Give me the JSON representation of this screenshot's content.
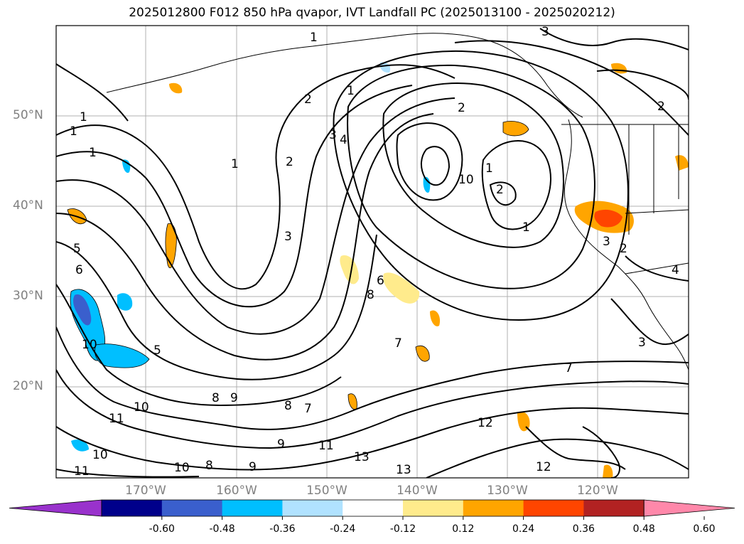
{
  "title": "2025012800 F012 850 hPa qvapor, IVT Landfall PC (2025013100 - 2025020212)",
  "lat_labels": [
    "50°N",
    "40°N",
    "30°N",
    "20°N"
  ],
  "lon_labels": [
    "170°W",
    "160°W",
    "150°W",
    "140°W",
    "130°W",
    "120°W"
  ],
  "contour_labels": [
    "1",
    "1",
    "1",
    "1",
    "1",
    "1",
    "1",
    "1",
    "2",
    "2",
    "2",
    "2",
    "2",
    "2",
    "3",
    "3",
    "3",
    "3",
    "3",
    "4",
    "4",
    "5",
    "5",
    "6",
    "6",
    "7",
    "7",
    "7",
    "8",
    "8",
    "8",
    "8",
    "9",
    "9",
    "9",
    "10",
    "10",
    "10",
    "10",
    "10",
    "11",
    "11",
    "11",
    "12",
    "12",
    "13",
    "13"
  ],
  "colorbar": {
    "ticks": [
      "-0.60",
      "-0.48",
      "-0.36",
      "-0.24",
      "-0.12",
      "0.12",
      "0.24",
      "0.36",
      "0.48",
      "0.60"
    ],
    "colors": [
      "#9932cc",
      "#00008b",
      "#3a5fcd",
      "#00bfff",
      "#b0e2ff",
      "#ffffff",
      "#ffeb8c",
      "#ffa500",
      "#ff4500",
      "#b22222",
      "#ff88aa"
    ]
  },
  "colors": {
    "contour": "#000000",
    "grid": "#b0b0b0",
    "axis_label": "#808080"
  }
}
